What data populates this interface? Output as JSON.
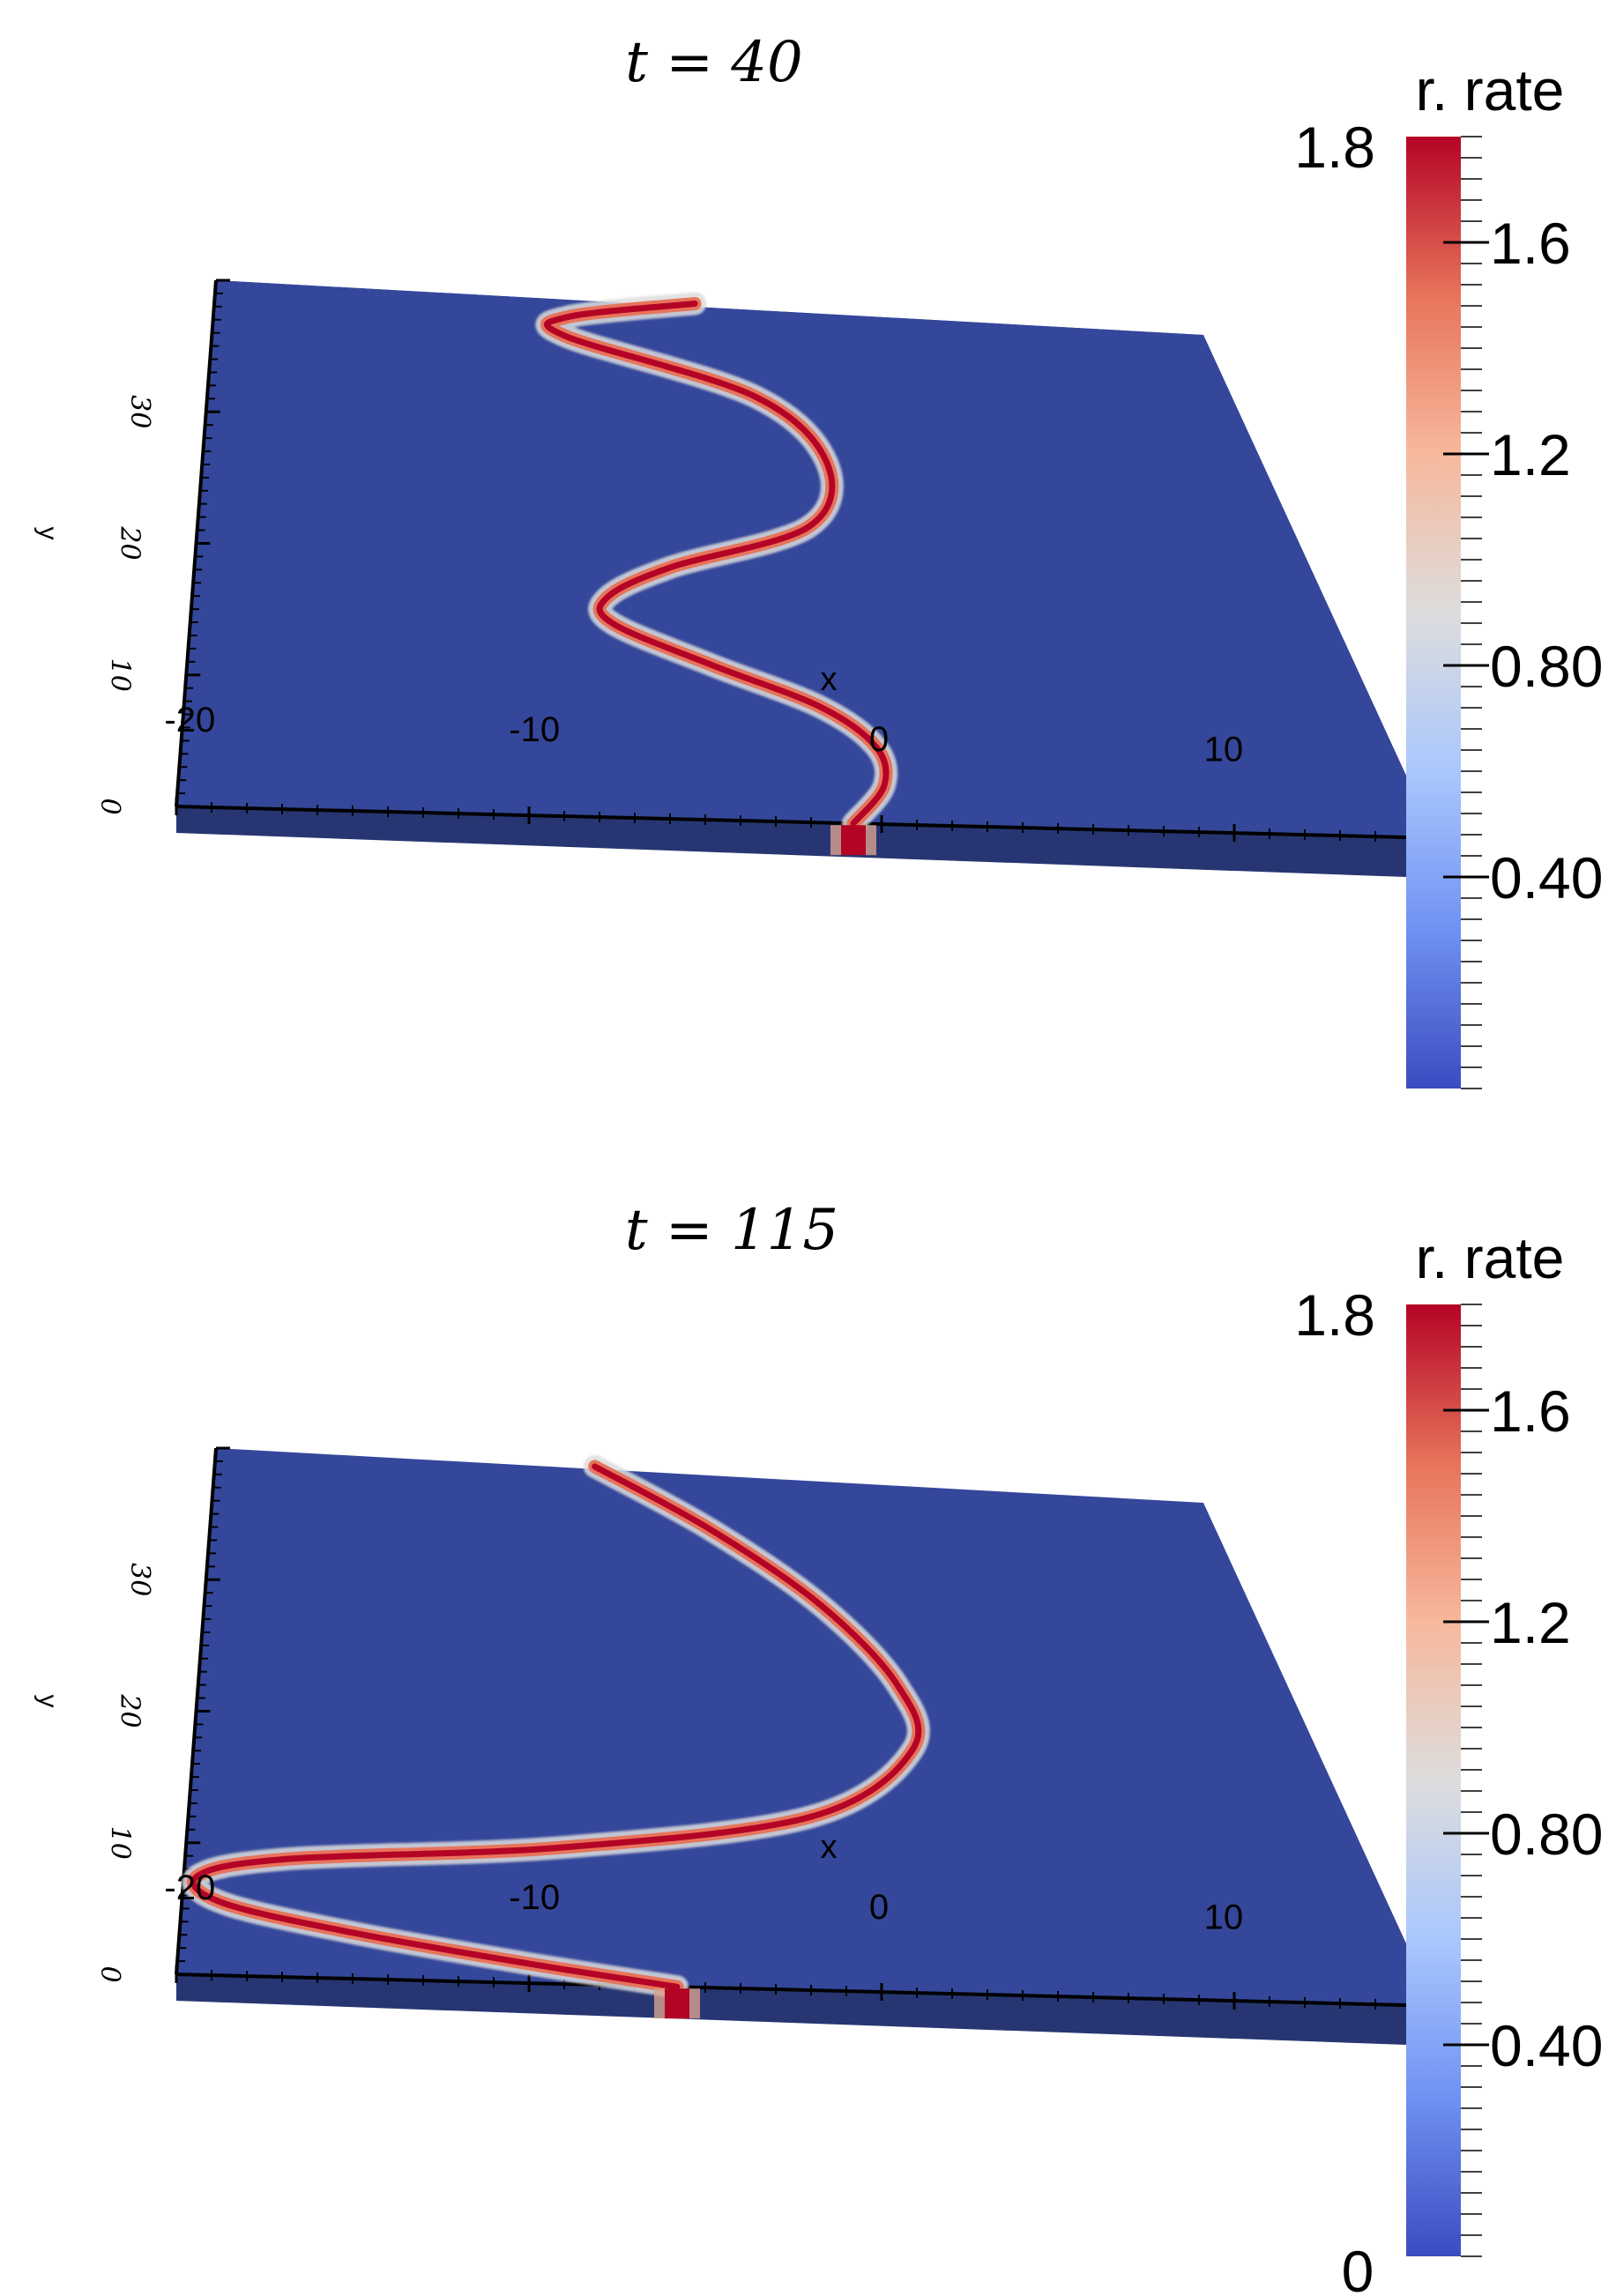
{
  "panels": [
    {
      "title": "t = 40",
      "chart_data": {
        "type": "heatmap",
        "title": "t = 40",
        "xlabel": "x",
        "ylabel": "y",
        "x_ticks": [
          "-20",
          "-10",
          "0",
          "10"
        ],
        "y_ticks": [
          "0",
          "10",
          "20",
          "30"
        ],
        "xlim": [
          -20,
          20
        ],
        "ylim": [
          0,
          40
        ],
        "front_curve": {
          "x": [
            -0.8,
            0.2,
            0.1,
            -1.4,
            -4.5,
            -7.4,
            -7.5,
            -5.5,
            -1.2,
            -0.4,
            -2.5,
            -8.5,
            -8.4,
            -4.2
          ],
          "y": [
            0,
            3,
            6,
            9,
            12,
            15,
            17,
            19.5,
            23,
            28,
            33,
            37,
            38.5,
            40
          ]
        },
        "colorbar": {
          "title": "r. rate",
          "min": 0,
          "max": 1.8,
          "max_label": "1.8",
          "tick_labels": [
            "1.6",
            "1.2",
            "0.80",
            "0.40"
          ],
          "tick_values": [
            1.6,
            1.2,
            0.8,
            0.4
          ],
          "colors": [
            "#3b4cc0",
            "#6f92f3",
            "#aac7fd",
            "#dddddd",
            "#f7b89c",
            "#e7745b",
            "#b40426"
          ]
        },
        "grid": false
      }
    },
    {
      "title": "t = 115",
      "chart_data": {
        "type": "heatmap",
        "title": "t = 115",
        "xlabel": "x",
        "ylabel": "y",
        "x_ticks": [
          "-20",
          "-10",
          "0",
          "10"
        ],
        "y_ticks": [
          "0",
          "10",
          "20",
          "30"
        ],
        "xlim": [
          -20,
          20
        ],
        "ylim": [
          0,
          40
        ],
        "front_curve": {
          "x": [
            -5.8,
            -10,
            -15,
            -18.8,
            -19.6,
            -17,
            -9,
            -1.5,
            1.8,
            1.6,
            -0.5,
            -3.8,
            -7.5
          ],
          "y": [
            0,
            1.5,
            3.5,
            5.5,
            7.5,
            9,
            10.5,
            13.5,
            19,
            24,
            30,
            35.5,
            40
          ]
        },
        "colorbar": {
          "title": "r. rate",
          "min": 0,
          "max": 1.8,
          "min_label": "0",
          "max_label": "1.8",
          "tick_labels": [
            "1.6",
            "1.2",
            "0.80",
            "0.40"
          ],
          "tick_values": [
            1.6,
            1.2,
            0.8,
            0.4
          ],
          "colors": [
            "#3b4cc0",
            "#6f92f3",
            "#aac7fd",
            "#dddddd",
            "#f7b89c",
            "#e7745b",
            "#b40426"
          ]
        },
        "grid": false
      }
    }
  ]
}
